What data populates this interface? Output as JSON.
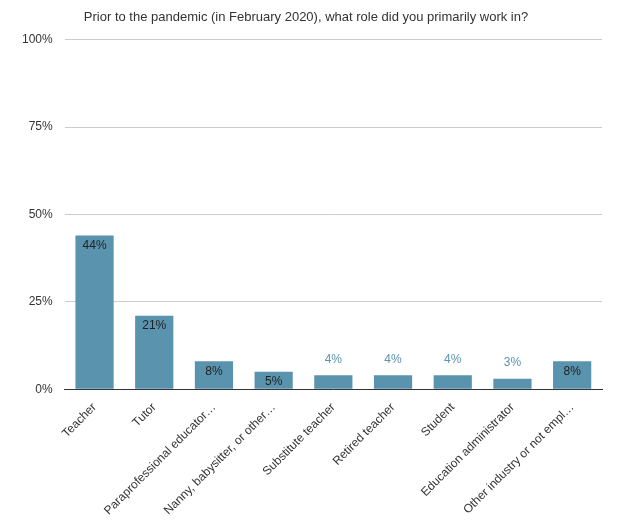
{
  "chart_data": {
    "type": "bar",
    "title": "Prior to the pandemic (in February 2020), what role did you primarily work in?",
    "categories": [
      "Teacher",
      "Tutor",
      "Paraprofessional educator…",
      "Nanny, babysitter, or other…",
      "Substitute teacher",
      "Retired teacher",
      "Student",
      "Education administrator",
      "Other industry or not empl…"
    ],
    "values": [
      44,
      21,
      8,
      5,
      4,
      4,
      4,
      3,
      8
    ],
    "value_labels": [
      "44%",
      "21%",
      "8%",
      "5%",
      "4%",
      "4%",
      "4%",
      "3%",
      "8%"
    ],
    "color": "#5a93ad",
    "ylim": [
      0,
      100
    ],
    "yticks": [
      {
        "value": 0,
        "label": "0%"
      },
      {
        "value": 25,
        "label": "25%"
      },
      {
        "value": 50,
        "label": "50%"
      },
      {
        "value": 75,
        "label": "75%"
      },
      {
        "value": 100,
        "label": "100%"
      }
    ],
    "grid": true,
    "data_labels": true
  }
}
